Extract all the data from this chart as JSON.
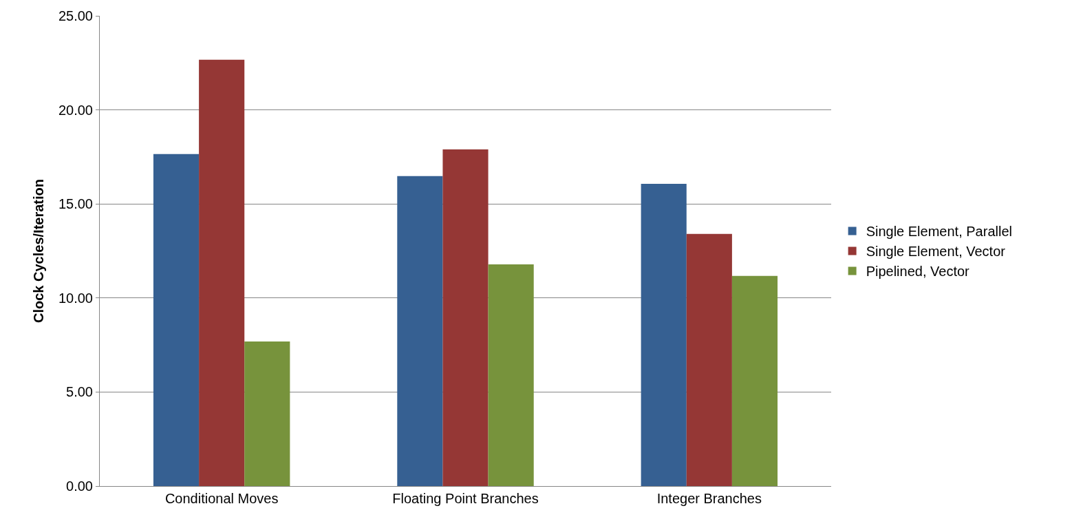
{
  "chart_data": {
    "type": "bar",
    "ylabel": "Clock Cycles/Iteration",
    "categories": [
      "Conditional Moves",
      "Floating Point Branches",
      "Integer Branches"
    ],
    "series": [
      {
        "name": "Single Element, Parallel",
        "color": "#366092",
        "values": [
          17.65,
          16.48,
          16.07
        ]
      },
      {
        "name": "Single Element, Vector",
        "color": "#953735",
        "values": [
          22.67,
          17.9,
          13.41
        ]
      },
      {
        "name": "Pipelined, Vector",
        "color": "#77933c",
        "values": [
          7.69,
          11.79,
          11.17
        ]
      }
    ],
    "ylim": [
      0,
      25
    ],
    "yticks": [
      {
        "value": 0,
        "label": "0.00"
      },
      {
        "value": 5,
        "label": "5.00"
      },
      {
        "value": 10,
        "label": "10.00"
      },
      {
        "value": 15,
        "label": "15.00"
      },
      {
        "value": 20,
        "label": "20.00"
      },
      {
        "value": 25,
        "label": "25.00"
      }
    ],
    "grid": "y",
    "legend": "right"
  }
}
